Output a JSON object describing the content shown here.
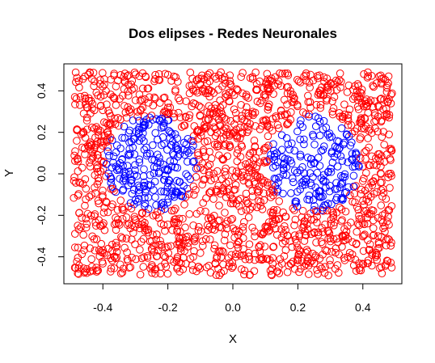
{
  "chart_data": {
    "type": "scatter",
    "title": "Dos elipses - Redes Neuronales",
    "xlabel": "X",
    "ylabel": "Y",
    "xlim": [
      -0.52,
      0.52
    ],
    "ylim": [
      -0.53,
      0.53
    ],
    "x_ticks": [
      -0.4,
      -0.2,
      0.0,
      0.2,
      0.4
    ],
    "x_tick_labels": [
      "-0.4",
      "-0.2",
      "0.0",
      "0.2",
      "0.4"
    ],
    "y_ticks": [
      -0.4,
      -0.2,
      0.0,
      0.2,
      0.4
    ],
    "y_tick_labels": [
      "-0.4",
      "-0.2",
      "0.0",
      "0.2",
      "0.4"
    ],
    "grid": false,
    "marker": "open-circle",
    "x_range": [
      -0.49,
      0.49
    ],
    "y_range": [
      -0.49,
      0.49
    ],
    "series": [
      {
        "color": "#ff0000",
        "region": "outside both ellipses",
        "approx_count": 1600
      },
      {
        "color": "#0000ff",
        "region": "inside ellipses",
        "approx_count": 400,
        "ellipses": [
          {
            "center": [
              -0.25,
              0.05
            ],
            "semi_axes": [
              0.14,
              0.23
            ]
          },
          {
            "center": [
              0.25,
              0.05
            ],
            "semi_axes": [
              0.14,
              0.23
            ]
          }
        ]
      }
    ]
  }
}
